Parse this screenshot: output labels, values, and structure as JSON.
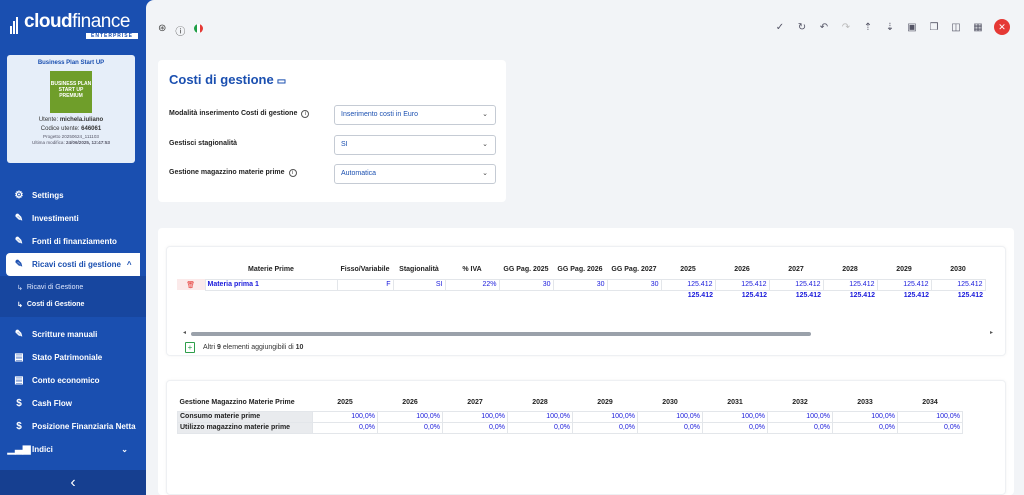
{
  "app": {
    "logo_main": "cloud",
    "logo_light": "finance",
    "logo_sub": "ENTERPRISE"
  },
  "profile": {
    "title": "Business Plan Start UP",
    "image_lines": [
      "BUSINESS PLAN",
      "START UP",
      "PREMIUM"
    ],
    "user_label": "Utente: ",
    "user": "michela.iuliano",
    "code_label": "Codice utente: ",
    "code": "646061",
    "project": "Progetto 20250624_111103",
    "modified_label": "Ultima modifica: ",
    "modified": "24/06/2025, 12:47:53"
  },
  "menu": {
    "items_top": [
      {
        "label": "Settings",
        "icon": "gear-icon"
      },
      {
        "label": "Investimenti",
        "icon": "edit-icon"
      },
      {
        "label": "Fonti di finanziamento",
        "icon": "edit-icon"
      }
    ],
    "open_item": {
      "label": "Ricavi costi di gestione",
      "icon": "edit-icon"
    },
    "sub_items": [
      "Ricavi di Gestione",
      "Costi di Gestione"
    ],
    "items_bottom": [
      {
        "label": "Scritture manuali",
        "icon": "edit-icon"
      },
      {
        "label": "Stato Patrimoniale",
        "icon": "document-icon"
      },
      {
        "label": "Conto economico",
        "icon": "document-icon"
      },
      {
        "label": "Cash Flow",
        "icon": "dollar-icon"
      },
      {
        "label": "Posizione Finanziaria Netta",
        "icon": "dollar-icon"
      },
      {
        "label": "Indici",
        "icon": "bar-chart-icon"
      }
    ]
  },
  "colors": {
    "accent": "#1a4fb0",
    "danger": "#e53935",
    "value": "#1a1adb"
  },
  "page": {
    "title": "Costi di gestione"
  },
  "form": [
    {
      "label": "Modalità inserimento Costi di gestione",
      "info": true,
      "value": "Inserimento costi in Euro"
    },
    {
      "label": "Gestisci stagionalità",
      "info": false,
      "value": "SI"
    },
    {
      "label": "Gestione magazzino materie prime",
      "info": true,
      "value": "Automatica"
    }
  ],
  "table1": {
    "headers": [
      "Materie Prime",
      "Fisso/Variabile",
      "Stagionalità",
      "% IVA",
      "GG Pag. 2025",
      "GG Pag. 2026",
      "GG Pag. 2027",
      "2025",
      "2026",
      "2027",
      "2028",
      "2029",
      "2030"
    ],
    "row": {
      "name": "Materia prima 1",
      "fisso": "F",
      "stag": "SI",
      "iva": "22%",
      "gg": [
        "30",
        "30",
        "30"
      ],
      "years": [
        "125.412",
        "125.412",
        "125.412",
        "125.412",
        "125.412",
        "125.412"
      ]
    },
    "totals": [
      "125.412",
      "125.412",
      "125.412",
      "125.412",
      "125.412",
      "125.412"
    ],
    "add_prefix": "Altri ",
    "add_count": "9",
    "add_mid": " elementi aggiungibili di ",
    "add_total": "10"
  },
  "table2": {
    "headers": [
      "Gestione Magazzino Materie Prime",
      "2025",
      "2026",
      "2027",
      "2028",
      "2029",
      "2030",
      "2031",
      "2032",
      "2033",
      "2034"
    ],
    "rows": [
      {
        "label": "Consumo materie prime",
        "values": [
          "100,0%",
          "100,0%",
          "100,0%",
          "100,0%",
          "100,0%",
          "100,0%",
          "100,0%",
          "100,0%",
          "100,0%",
          "100,0%"
        ]
      },
      {
        "label": "Utilizzo magazzino materie prime",
        "values": [
          "0,0%",
          "0,0%",
          "0,0%",
          "0,0%",
          "0,0%",
          "0,0%",
          "0,0%",
          "0,0%",
          "0,0%",
          "0,0%"
        ]
      }
    ]
  }
}
